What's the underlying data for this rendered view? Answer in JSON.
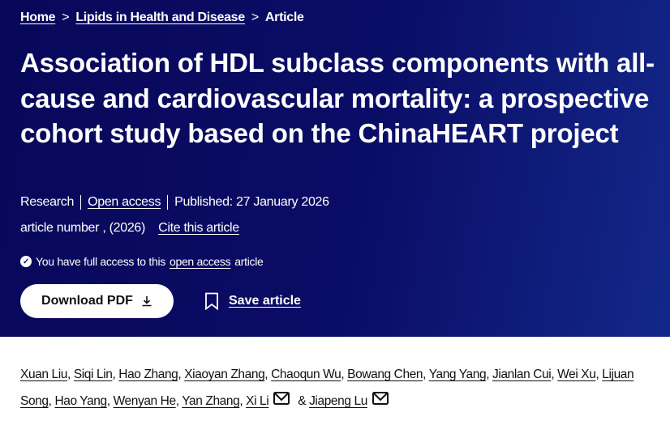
{
  "breadcrumb": [
    {
      "label": "Home"
    },
    {
      "label": "Lipids in Health and Disease"
    },
    {
      "label": "Article"
    }
  ],
  "breadcrumb_separator": ">",
  "title": "Association of HDL subclass components with all-cause and cardiovascular mortality: a prospective cohort study based on the ChinaHEART project",
  "meta": {
    "type": "Research",
    "access": "Open access",
    "published": "Published: 27 January 2026",
    "article_number": "article number , (2026)",
    "cite": "Cite this article"
  },
  "access_notice": {
    "before": "You have full access to this",
    "link": "open access",
    "after": "article",
    "icon": "check-circle-icon"
  },
  "actions": {
    "download": "Download PDF",
    "download_icon": "download-icon",
    "save": "Save article",
    "save_icon": "bookmark-icon"
  },
  "authors": [
    {
      "name": "Xuan Liu",
      "sep": ", "
    },
    {
      "name": "Siqi Lin",
      "sep": ", "
    },
    {
      "name": "Hao Zhang",
      "sep": ", "
    },
    {
      "name": "Xiaoyan Zhang",
      "sep": ", "
    },
    {
      "name": "Chaoqun Wu",
      "sep": ", "
    },
    {
      "name": "Bowang Chen",
      "sep": ", "
    },
    {
      "name": "Yang Yang",
      "sep": ", "
    },
    {
      "name": "Jianlan Cui",
      "sep": ", "
    },
    {
      "name": "Wei Xu",
      "sep": ", "
    },
    {
      "name": "Lijuan Song",
      "sep": ", "
    },
    {
      "name": "Hao Yang",
      "sep": ", "
    },
    {
      "name": "Wenyan He",
      "sep": ", "
    },
    {
      "name": "Yan Zhang",
      "sep": ", "
    },
    {
      "name": "Xi Li",
      "sep": " & ",
      "email": true
    },
    {
      "name": "Jiapeng Lu",
      "sep": "",
      "email": true
    }
  ],
  "colors": {
    "hero_bg": "#0a0d66",
    "hero_bg_right": "#13278a"
  }
}
